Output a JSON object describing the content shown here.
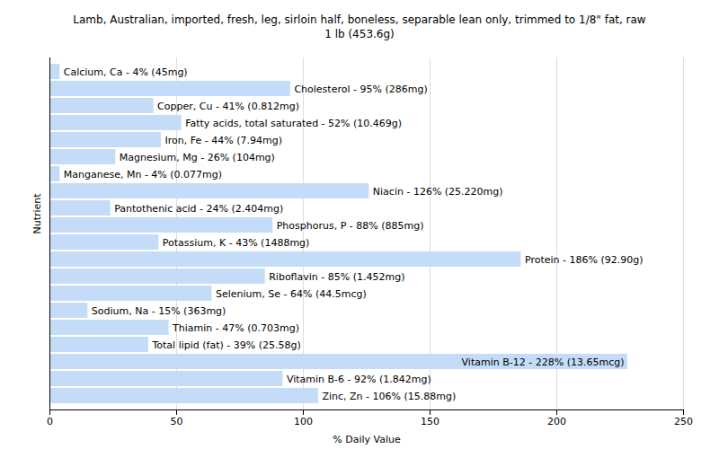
{
  "chart_data": {
    "type": "bar",
    "orientation": "horizontal",
    "title": "Lamb, Australian, imported, fresh, leg, sirloin half, boneless, separable lean only, trimmed to 1/8\" fat, raw",
    "subtitle": "1 lb (453.6g)",
    "x_label": "% Daily Value",
    "y_label": "Nutrient",
    "categories": [
      "Calcium, Ca - 4% (45mg)",
      "Cholesterol - 95% (286mg)",
      "Copper, Cu - 41% (0.812mg)",
      "Fatty acids, total saturated - 52% (10.469g)",
      "Iron, Fe - 44% (7.94mg)",
      "Magnesium, Mg - 26% (104mg)",
      "Manganese, Mn - 4% (0.077mg)",
      "Niacin - 126% (25.220mg)",
      "Pantothenic acid - 24% (2.404mg)",
      "Phosphorus, P - 88% (885mg)",
      "Potassium, K - 43% (1488mg)",
      "Protein - 186% (92.90g)",
      "Riboflavin - 85% (1.452mg)",
      "Selenium, Se - 64% (44.5mcg)",
      "Sodium, Na - 15% (363mg)",
      "Thiamin - 47% (0.703mg)",
      "Total lipid (fat) - 39% (25.58g)",
      "Vitamin B-12 - 228% (13.65mcg)",
      "Vitamin B-6 - 92% (1.842mg)",
      "Zinc, Zn - 106% (15.88mg)"
    ],
    "values": [
      4,
      95,
      41,
      52,
      44,
      26,
      4,
      126,
      24,
      88,
      43,
      186,
      85,
      64,
      15,
      47,
      39,
      228,
      92,
      106
    ],
    "color": "#c4dcf7",
    "xlim": [
      0,
      250
    ],
    "xticks": [
      0,
      50,
      100,
      150,
      200,
      250
    ],
    "grid": true,
    "tick_labels": "x"
  }
}
